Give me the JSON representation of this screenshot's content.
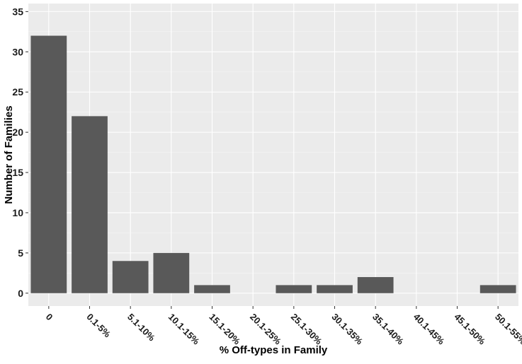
{
  "chart_data": {
    "type": "bar",
    "categories": [
      "0",
      "0.1-5%",
      "5.1-10%",
      "10.1-15%",
      "15.1-20%",
      "20.1-25%",
      "25.1-30%",
      "30.1-35%",
      "35.1-40%",
      "40.1-45%",
      "45.1-50%",
      "50.1-55%"
    ],
    "values": [
      32,
      22,
      4,
      5,
      1,
      0,
      1,
      1,
      2,
      0,
      0,
      1
    ],
    "xlabel": "% Off-types in Family",
    "ylabel": "Number of Families",
    "ylim": [
      -1.6,
      36
    ],
    "yticks": [
      0,
      5,
      10,
      15,
      20,
      25,
      30,
      35
    ],
    "grid": true,
    "colors": {
      "bar": "#595959",
      "panel": "#ebebeb",
      "grid_major": "#ffffff",
      "text": "#1a1a1a"
    }
  }
}
